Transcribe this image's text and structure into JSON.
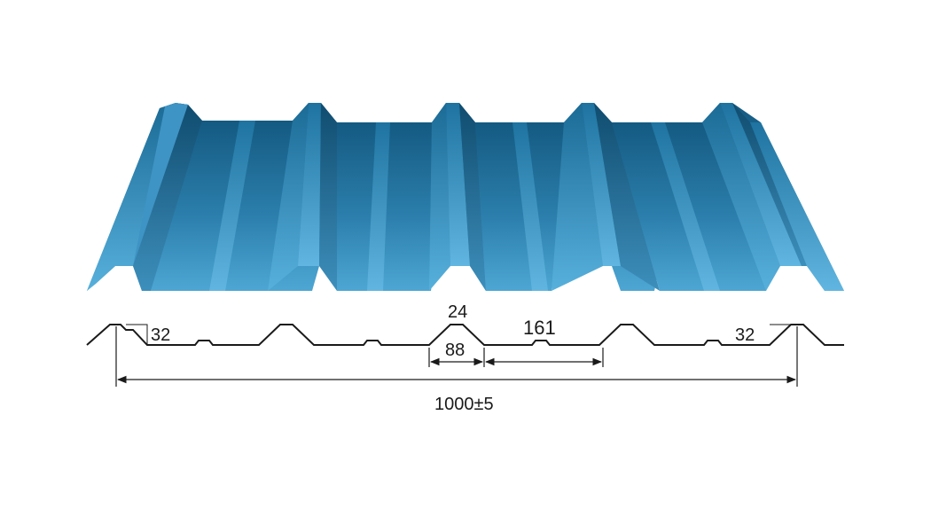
{
  "colors": {
    "sheet_top": "#155f86",
    "sheet_mid": "#2c7fab",
    "sheet_bottom": "#4aa3d0",
    "rib_light": "#5cb2dc",
    "rib_dark": "#134f72",
    "line": "#1a1a1a",
    "background": "#ffffff"
  },
  "dimensions": {
    "edge_left": "32",
    "edge_right": "32",
    "rib_top": "24",
    "rib_base": "88",
    "pitch_gap": "161",
    "total_width": "1000±5"
  }
}
